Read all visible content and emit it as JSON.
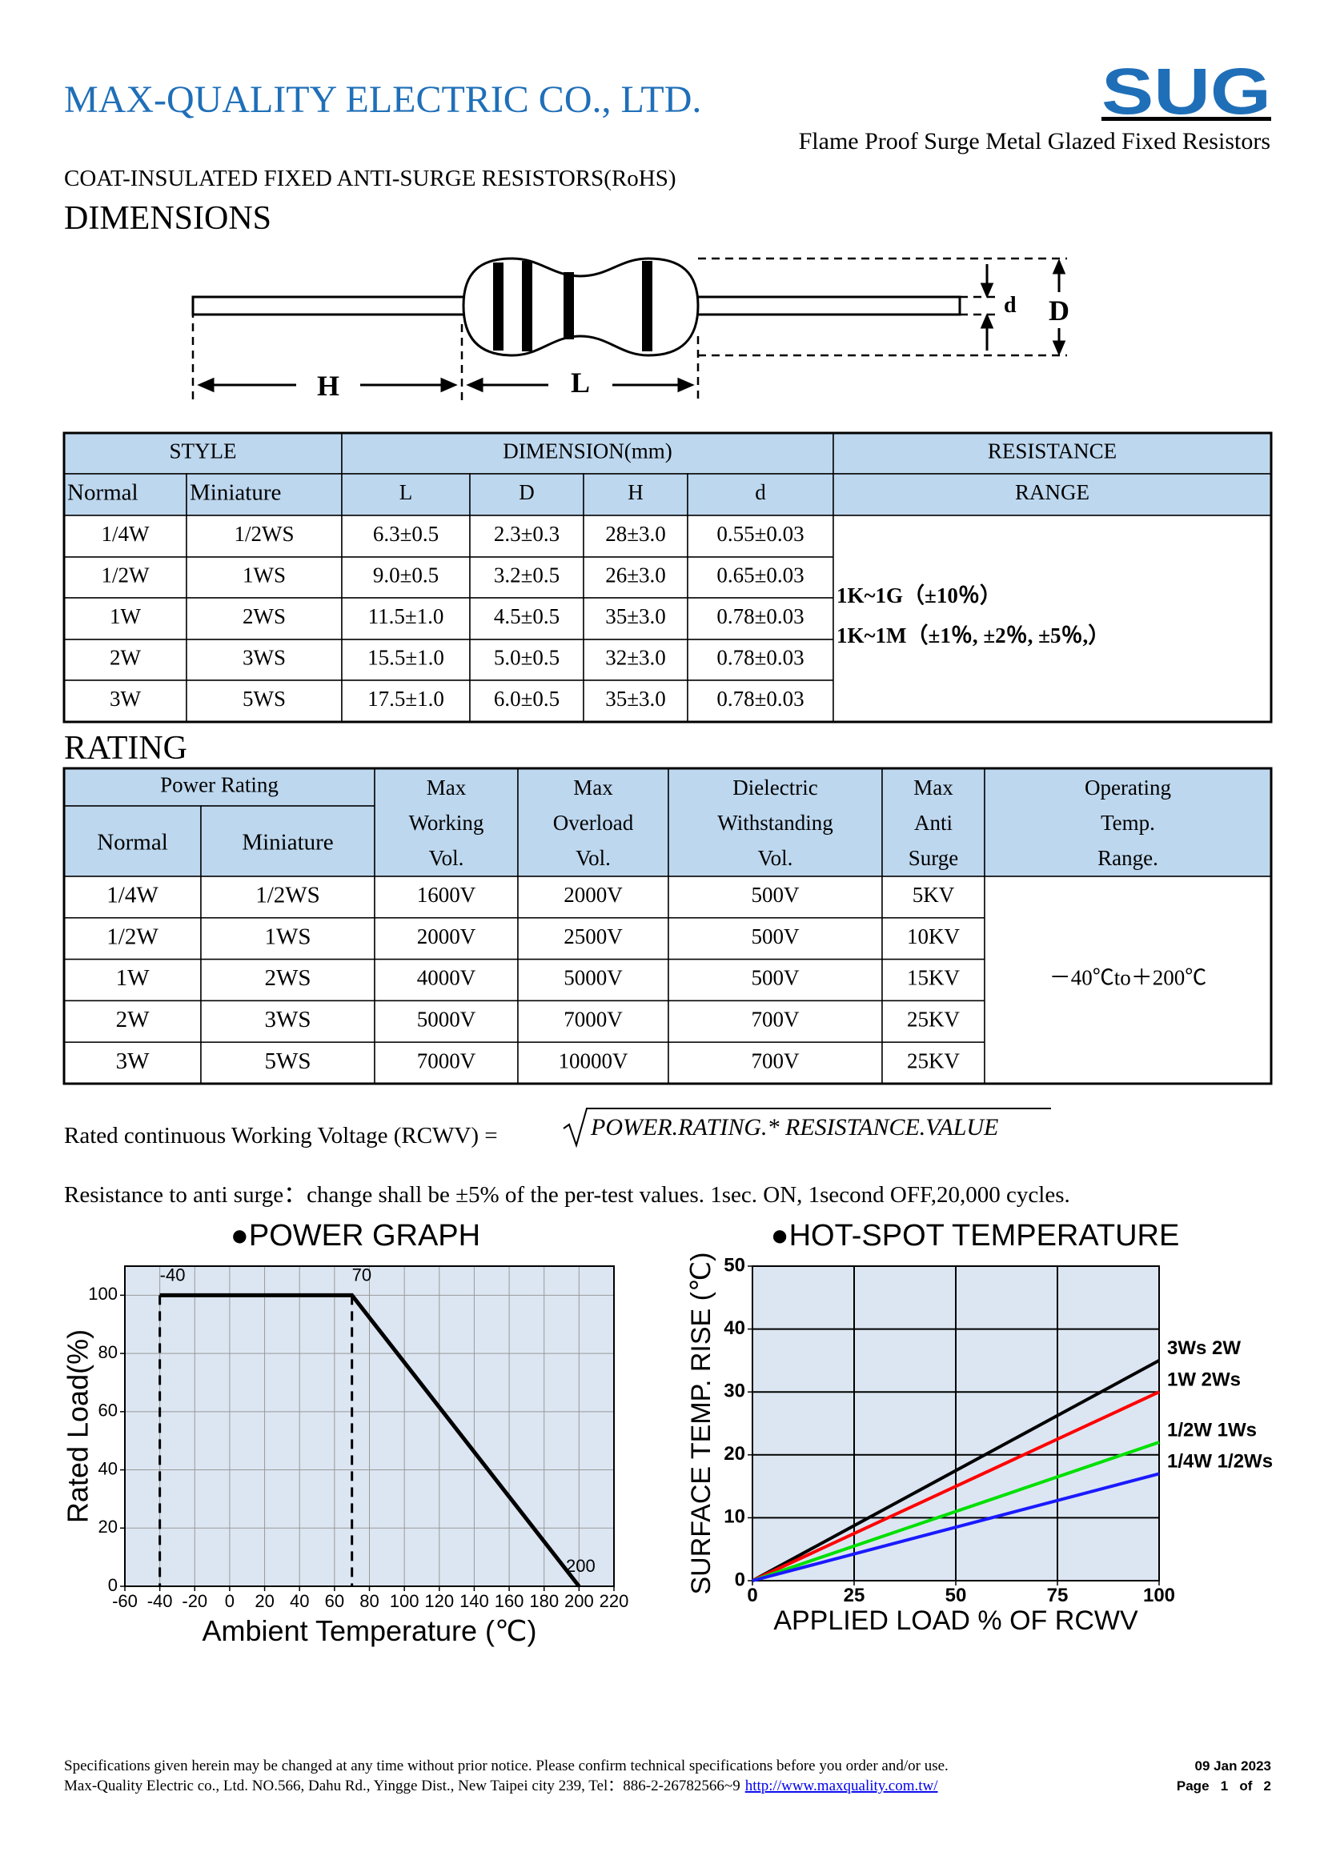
{
  "header": {
    "company": "MAX-QUALITY  ELECTRIC  CO.,  LTD.",
    "logo": "SUG",
    "subtitle": "Flame  Proof  Surge  Metal  Glazed  Fixed  Resistors",
    "product": "COAT-INSULATED FIXED ANTI-SURGE RESISTORS(RoHS)"
  },
  "dimensions": {
    "heading": "DIMENSIONS",
    "labels": {
      "H": "H",
      "L": "L",
      "d": "d",
      "D": "D"
    }
  },
  "table1": {
    "header_top": [
      "STYLE",
      "DIMENSION(mm)",
      "RESISTANCE"
    ],
    "header_sub": [
      "Normal",
      "Miniature",
      "L",
      "D",
      "H",
      "d",
      "RANGE"
    ],
    "rows": [
      [
        "1/4W",
        "1/2WS",
        "6.3±0.5",
        "2.3±0.3",
        "28±3.0",
        "0.55±0.03"
      ],
      [
        "1/2W",
        "1WS",
        "9.0±0.5",
        "3.2±0.5",
        "26±3.0",
        "0.65±0.03"
      ],
      [
        "1W",
        "2WS",
        "11.5±1.0",
        "4.5±0.5",
        "35±3.0",
        "0.78±0.03"
      ],
      [
        "2W",
        "3WS",
        "15.5±1.0",
        "5.0±0.5",
        "32±3.0",
        "0.78±0.03"
      ],
      [
        "3W",
        "5WS",
        "17.5±1.0",
        "6.0±0.5",
        "35±3.0",
        "0.78±0.03"
      ]
    ],
    "range": [
      "1K~1G（±10％）",
      "1K~1M（±1％, ±2％, ±5％,）"
    ]
  },
  "rating": {
    "heading": "RATING"
  },
  "table2": {
    "power_rating": "Power Rating",
    "header_sub": [
      "Normal",
      "Miniature"
    ],
    "headers": [
      [
        "Max",
        "Working",
        "Vol."
      ],
      [
        "Max",
        "Overload",
        "Vol."
      ],
      [
        "Dielectric",
        "Withstanding",
        "Vol."
      ],
      [
        "Max",
        "Anti",
        "Surge"
      ],
      [
        "Operating",
        "Temp.",
        "Range."
      ]
    ],
    "rows": [
      [
        "1/4W",
        "1/2WS",
        "1600V",
        "2000V",
        "500V",
        "5KV"
      ],
      [
        "1/2W",
        "1WS",
        "2000V",
        "2500V",
        "500V",
        "10KV"
      ],
      [
        "1W",
        "2WS",
        "4000V",
        "5000V",
        "500V",
        "15KV"
      ],
      [
        "2W",
        "3WS",
        "5000V",
        "7000V",
        "700V",
        "25KV"
      ],
      [
        "3W",
        "5WS",
        "7000V",
        "10000V",
        "700V",
        "25KV"
      ]
    ],
    "temp_range": "－40℃to＋200℃"
  },
  "formula": {
    "lhs": "Rated continuous Working Voltage (RCWV) =",
    "rhs": "POWER.RATING.* RESISTANCE.VALUE"
  },
  "note": "Resistance to anti surge：change shall be ±5% of the per-test values. 1sec. ON, 1second OFF,20,000 cycles.",
  "chart_data": [
    {
      "type": "line",
      "title": "●POWER GRAPH",
      "x_label": "Ambient Temperature (℃)",
      "y_label": "Rated Load(%)",
      "xlim": [
        -60,
        220
      ],
      "xticks": [
        -60,
        -40,
        -20,
        0,
        20,
        40,
        60,
        80,
        100,
        120,
        140,
        160,
        180,
        200,
        220
      ],
      "ylim": [
        0,
        110
      ],
      "yticks": [
        0,
        20,
        40,
        60,
        80,
        100
      ],
      "grid": true,
      "series": [
        {
          "color": "#000000",
          "x": [
            -40,
            70,
            200
          ],
          "values": [
            100,
            100,
            0
          ]
        }
      ],
      "annotations": [
        "-40",
        "70",
        "200"
      ]
    },
    {
      "type": "line",
      "title": "●HOT-SPOT TEMPERATURE",
      "x_label": "APPLIED LOAD % OF RCWV",
      "y_label": "SURFACE TEMP. RISE (℃)",
      "xlim": [
        0,
        100
      ],
      "xticks": [
        0,
        25,
        50,
        75,
        100
      ],
      "ylim": [
        0,
        50
      ],
      "yticks": [
        0,
        10,
        20,
        30,
        40,
        50
      ],
      "grid": true,
      "series": [
        {
          "name": "3Ws 2W",
          "color": "#000000",
          "x": [
            0,
            100
          ],
          "values": [
            0,
            35
          ]
        },
        {
          "name": "1W 2Ws",
          "color": "#ff0000",
          "x": [
            0,
            100
          ],
          "values": [
            0,
            30
          ]
        },
        {
          "name": "1/2W 1Ws",
          "color": "#00e000",
          "x": [
            0,
            100
          ],
          "values": [
            0,
            22
          ]
        },
        {
          "name": "1/4W 1/2Ws",
          "color": "#1a1aff",
          "x": [
            0,
            100
          ],
          "values": [
            0,
            17
          ]
        }
      ]
    }
  ],
  "footer": {
    "line1": "Specifications given herein may be changed at any time without prior notice. Please confirm technical specifications before you order and/or use.",
    "line2": "Max-Quality Electric co., Ltd. NO.566, Dahu Rd., Yingge Dist., New Taipei city 239, Tel：886-2-26782566~9",
    "url": "http://www.maxquality.com.tw/",
    "date": "09 Jan 2023",
    "page": "Page   1   of   2"
  }
}
